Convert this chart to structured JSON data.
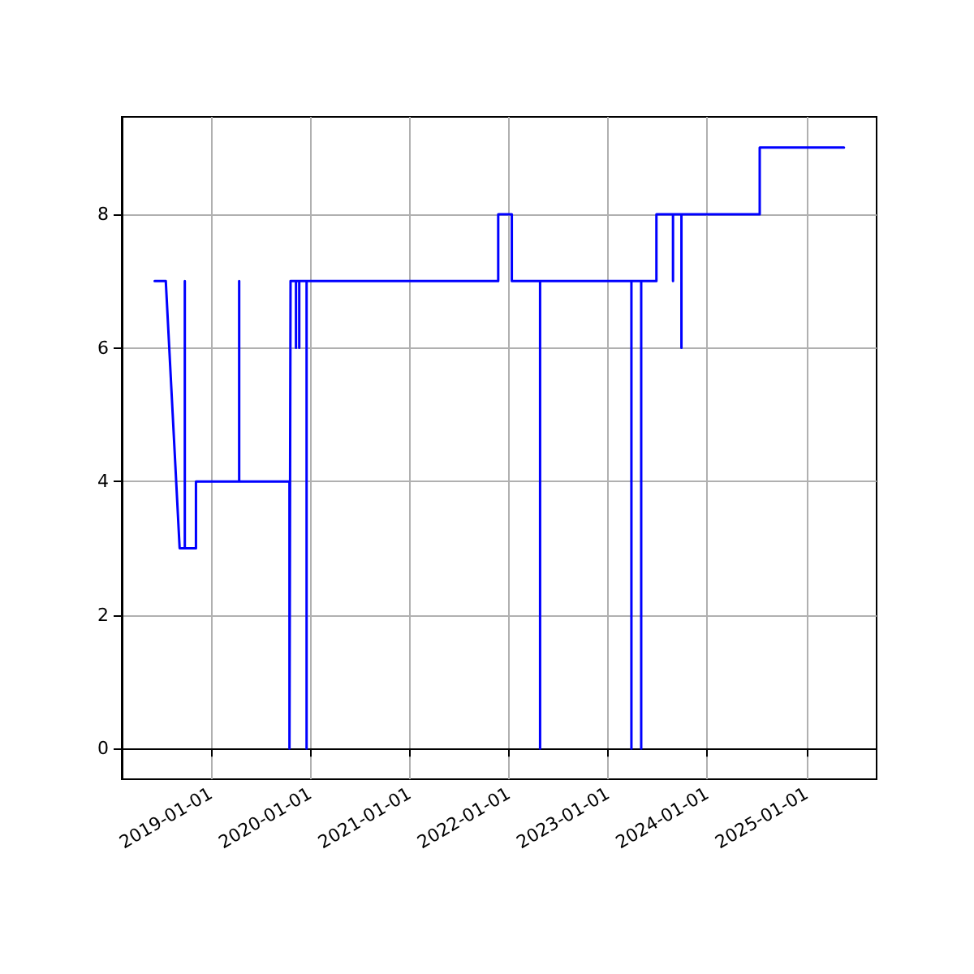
{
  "chart_data": {
    "type": "line",
    "x": [
      "2018-06-08",
      "2018-07-19",
      "2018-09-08",
      "2018-09-27",
      "2018-09-27",
      "2018-09-27",
      "2018-11-07",
      "2018-11-07",
      "2019-04-15",
      "2019-04-15",
      "2019-04-15",
      "2019-10-17",
      "2019-10-17",
      "2019-10-21",
      "2019-11-10",
      "2019-11-10",
      "2019-11-10",
      "2019-11-22",
      "2019-11-22",
      "2019-11-22",
      "2019-12-19",
      "2019-12-19",
      "2019-12-19",
      "2021-11-23",
      "2021-11-23",
      "2022-01-12",
      "2022-01-12",
      "2022-04-26",
      "2022-04-26",
      "2022-04-26",
      "2023-03-28",
      "2023-03-28",
      "2023-03-28",
      "2023-05-03",
      "2023-05-03",
      "2023-05-03",
      "2023-06-28",
      "2023-06-28",
      "2023-08-28",
      "2023-08-28",
      "2023-08-28",
      "2023-09-28",
      "2023-09-28",
      "2023-09-28",
      "2024-07-12",
      "2024-07-12",
      "2025-05-18"
    ],
    "series": [
      {
        "color": "#0000ff",
        "values": [
          7,
          7,
          3,
          3,
          7,
          3,
          3,
          4,
          4,
          7,
          4,
          4,
          0,
          7,
          7,
          6,
          7,
          7,
          6,
          7,
          7,
          0,
          7,
          7,
          8,
          8,
          7,
          7,
          0,
          7,
          7,
          0,
          7,
          7,
          0,
          7,
          7,
          8,
          8,
          7,
          8,
          8,
          6,
          8,
          8,
          9,
          9
        ]
      }
    ],
    "xlim": [
      "2018-02-07",
      "2025-09-15"
    ],
    "xticks": [
      "2019-01-01",
      "2020-01-01",
      "2021-01-01",
      "2022-01-01",
      "2023-01-01",
      "2024-01-01",
      "2025-01-01"
    ],
    "ylim": [
      -0.46,
      9.46
    ],
    "yticks": [
      0,
      2,
      4,
      6,
      8
    ],
    "grid": true,
    "marker": "none",
    "line_style": "solid"
  }
}
